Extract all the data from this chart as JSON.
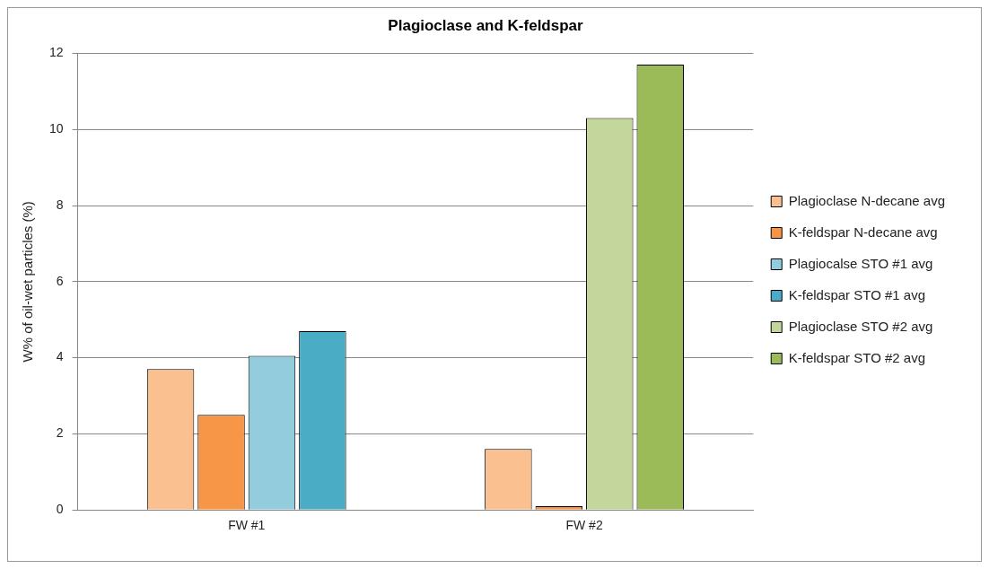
{
  "chart_data": {
    "type": "bar",
    "title": "Plagioclase and K-feldspar",
    "ylabel": "W% of oil-wet particles (%)",
    "categories": [
      "FW #1",
      "FW #2"
    ],
    "series": [
      {
        "name": "Plagioclase N-decane avg",
        "color": "#fac090",
        "values": [
          3.7,
          1.6
        ]
      },
      {
        "name": "K-feldspar N-decane avg",
        "color": "#f79646",
        "values": [
          2.5,
          0.1
        ]
      },
      {
        "name": "Plagiocalse STO #1 avg",
        "color": "#93cddd",
        "values": [
          4.05,
          null
        ]
      },
      {
        "name": "K-feldspar STO #1 avg",
        "color": "#4bacc6",
        "values": [
          4.7,
          null
        ]
      },
      {
        "name": "Plagioclase STO #2 avg",
        "color": "#c3d69b",
        "values": [
          null,
          10.3
        ]
      },
      {
        "name": "K-feldspar STO #2 avg",
        "color": "#9bbb59",
        "values": [
          null,
          11.7
        ]
      }
    ],
    "ylim": [
      0,
      12
    ],
    "yticks": [
      0,
      2,
      4,
      6,
      8,
      10,
      12
    ],
    "grid": "y",
    "legend": "right"
  }
}
